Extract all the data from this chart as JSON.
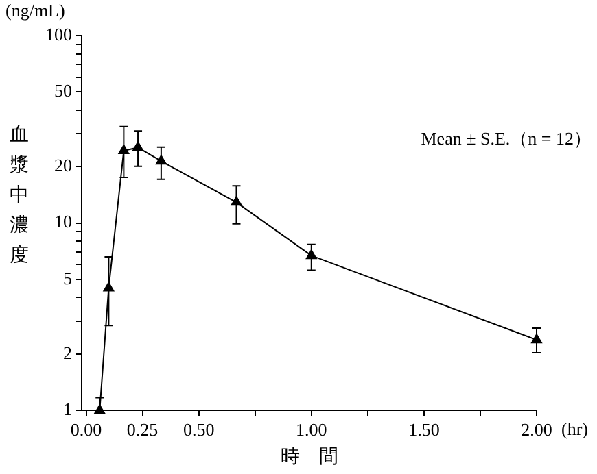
{
  "chart_data": {
    "type": "line",
    "xlabel": "時　間",
    "ylabel": "血漿中濃度",
    "annotations": [
      "Mean ± S.E.（n = 12）",
      "(ng/mL)",
      "(hr)"
    ],
    "x": [
      0.06,
      0.1,
      0.167,
      0.23,
      0.333,
      0.667,
      1,
      2
    ],
    "series": [
      {
        "color": "#000000",
        "values": [
          1,
          4.5,
          24.3,
          25.3,
          21.4,
          12.9,
          6.7,
          2.38
        ],
        "errors": [
          [
            1,
            1.17
          ],
          [
            2.84,
            6.6
          ],
          [
            17.5,
            32.7
          ],
          [
            20.1,
            31
          ],
          [
            17.1,
            25.4
          ],
          [
            9.9,
            15.8
          ],
          [
            5.6,
            7.7
          ],
          [
            2.03,
            2.75
          ]
        ]
      }
    ],
    "log": "y",
    "ylim": [
      1,
      100
    ],
    "yticks": [
      1,
      2,
      {
        "value": 3,
        "label": null
      },
      {
        "value": 4,
        "label": null
      },
      5,
      {
        "value": 6,
        "label": null
      },
      {
        "value": 7,
        "label": null
      },
      {
        "value": 8,
        "label": null
      },
      {
        "value": 9,
        "label": null
      },
      10,
      20,
      {
        "value": 30,
        "label": null
      },
      {
        "value": 40,
        "label": null
      },
      50,
      {
        "value": 60,
        "label": null
      },
      {
        "value": 70,
        "label": null
      },
      {
        "value": 80,
        "label": null
      },
      {
        "value": 90,
        "label": null
      },
      100
    ],
    "xlim": [
      -0.02,
      2
    ],
    "xticks": [
      {
        "value": 0,
        "label": "0.00"
      },
      {
        "value": 0.25,
        "label": "0.25"
      },
      {
        "value": 0.5,
        "label": "0.50"
      },
      {
        "value": 0.75,
        "label": null
      },
      {
        "value": 1,
        "label": "1.00"
      },
      {
        "value": 1.25,
        "label": null
      },
      {
        "value": 1.5,
        "label": "1.50"
      },
      {
        "value": 1.75,
        "label": null
      },
      {
        "value": 2,
        "label": "2.00"
      }
    ],
    "marker": "triangle",
    "line_style": "solid",
    "grid": false,
    "legend": false
  }
}
